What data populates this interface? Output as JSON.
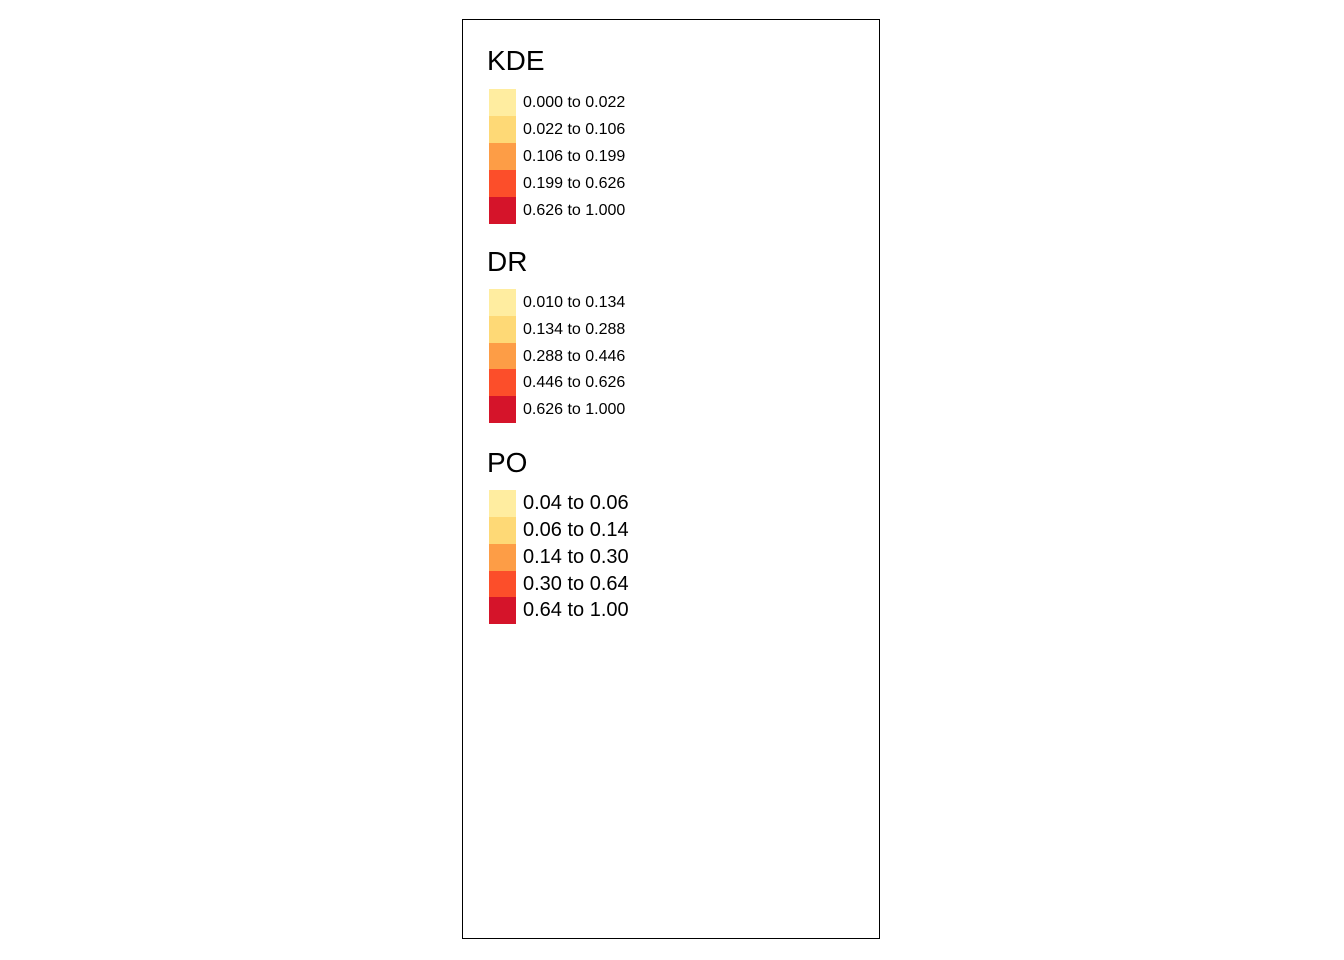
{
  "colors": [
    "#FFEDA0",
    "#FED976",
    "#FD9D46",
    "#FC4E2A",
    "#D5142A"
  ],
  "legends": [
    {
      "title": "KDE",
      "items": [
        "0.000 to 0.022",
        "0.022 to 0.106",
        "0.106 to 0.199",
        "0.199 to 0.626",
        "0.626 to 1.000"
      ]
    },
    {
      "title": "DR",
      "items": [
        "0.010 to 0.134",
        "0.134 to 0.288",
        "0.288 to 0.446",
        "0.446 to 0.626",
        "0.626 to 1.000"
      ]
    },
    {
      "title": "PO",
      "items": [
        "0.04 to 0.06",
        "0.06 to 0.14",
        "0.14 to 0.30",
        "0.30 to 0.64",
        "0.64 to 1.00"
      ]
    }
  ]
}
